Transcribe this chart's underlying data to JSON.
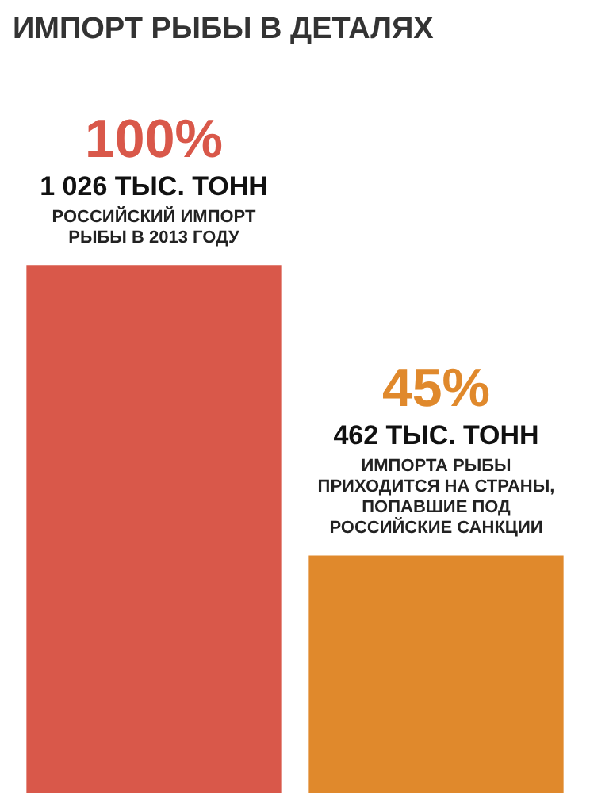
{
  "chart_data": {
    "type": "bar",
    "title": "ИМПОРТ РЫБЫ В ДЕТАЛЯХ",
    "categories": [
      "РОССИЙСКИЙ ИМПОРТ РЫБЫ В 2013 ГОДУ",
      "ИМПОРТА РЫБЫ ПРИХОДИТСЯ НА СТРАНЫ, ПОПАВШИЕ ПОД РОССИЙСКИЕ САНКЦИИ"
    ],
    "values": [
      100,
      45
    ],
    "value_labels": [
      "100%",
      "45%"
    ],
    "colors": [
      "#d9584a",
      "#e0892c"
    ],
    "annotations": [
      "1 026 ТЫС. ТОНН",
      "462 ТЫС. ТОНН"
    ]
  }
}
